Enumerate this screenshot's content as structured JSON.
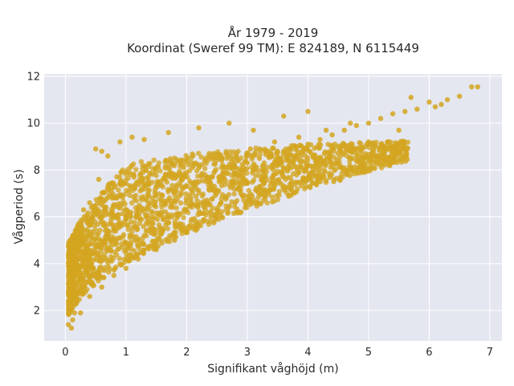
{
  "chart_data": {
    "type": "scatter",
    "title_line1": "År 1979 - 2019",
    "title_line2": "Koordinat (Sweref 99 TM): E 824189, N 6115449",
    "xlabel": "Signifikant våghöjd (m)",
    "ylabel": "Vågperiod (s)",
    "xlim": [
      -0.35,
      7.2
    ],
    "ylim": [
      0.7,
      12.1
    ],
    "xticks": [
      "0",
      "1",
      "2",
      "3",
      "4",
      "5",
      "6",
      "7"
    ],
    "yticks": [
      "2",
      "4",
      "6",
      "8",
      "10",
      "12"
    ],
    "grid": true,
    "marker_color": "#D4A520",
    "background_color": "#E5E7F0",
    "points": [
      [
        0.05,
        1.4
      ],
      [
        0.1,
        1.25
      ],
      [
        0.12,
        1.6
      ],
      [
        0.15,
        1.9
      ],
      [
        0.18,
        2.3
      ],
      [
        0.2,
        2.7
      ],
      [
        0.25,
        3.0
      ],
      [
        0.3,
        3.4
      ],
      [
        0.35,
        3.7
      ],
      [
        0.4,
        4.0
      ],
      [
        0.5,
        4.4
      ],
      [
        0.6,
        4.8
      ],
      [
        0.7,
        5.1
      ],
      [
        0.8,
        5.4
      ],
      [
        0.9,
        5.7
      ],
      [
        1.0,
        5.9
      ],
      [
        1.2,
        6.3
      ],
      [
        1.4,
        6.6
      ],
      [
        1.6,
        6.9
      ],
      [
        1.8,
        7.1
      ],
      [
        2.0,
        7.3
      ],
      [
        2.2,
        7.5
      ],
      [
        2.4,
        7.7
      ],
      [
        2.6,
        7.9
      ],
      [
        2.8,
        8.1
      ],
      [
        3.0,
        8.3
      ],
      [
        3.2,
        8.5
      ],
      [
        3.4,
        8.6
      ],
      [
        3.6,
        8.8
      ],
      [
        3.8,
        9.0
      ],
      [
        4.0,
        9.1
      ],
      [
        4.2,
        9.3
      ],
      [
        4.4,
        9.5
      ],
      [
        4.6,
        9.7
      ],
      [
        4.8,
        9.9
      ],
      [
        5.0,
        10.0
      ],
      [
        5.2,
        10.2
      ],
      [
        5.4,
        10.4
      ],
      [
        5.6,
        10.5
      ],
      [
        5.8,
        10.6
      ],
      [
        6.0,
        10.9
      ],
      [
        6.1,
        10.7
      ],
      [
        6.3,
        11.0
      ],
      [
        6.5,
        11.15
      ],
      [
        6.7,
        11.55
      ],
      [
        6.8,
        11.55
      ],
      [
        5.7,
        11.1
      ],
      [
        6.2,
        10.8
      ],
      [
        0.15,
        4.5
      ],
      [
        0.2,
        5.5
      ],
      [
        0.3,
        6.3
      ],
      [
        0.4,
        6.6
      ],
      [
        0.5,
        8.9
      ],
      [
        0.6,
        8.8
      ],
      [
        0.7,
        8.6
      ],
      [
        0.55,
        7.6
      ],
      [
        0.9,
        9.2
      ],
      [
        1.1,
        9.4
      ],
      [
        1.3,
        9.3
      ],
      [
        1.7,
        9.6
      ],
      [
        2.2,
        9.8
      ],
      [
        2.7,
        10.0
      ],
      [
        3.1,
        9.7
      ],
      [
        3.6,
        10.3
      ],
      [
        4.0,
        10.5
      ],
      [
        0.25,
        1.9
      ],
      [
        0.4,
        2.6
      ],
      [
        0.6,
        3.0
      ],
      [
        0.8,
        3.5
      ],
      [
        1.0,
        3.8
      ],
      [
        1.2,
        4.2
      ],
      [
        1.5,
        4.6
      ],
      [
        1.8,
        5.0
      ],
      [
        2.1,
        5.6
      ],
      [
        2.4,
        6.0
      ],
      [
        2.8,
        6.6
      ],
      [
        3.2,
        7.2
      ],
      [
        3.6,
        7.7
      ],
      [
        4.0,
        8.2
      ],
      [
        4.5,
        8.7
      ],
      [
        5.0,
        9.2
      ],
      [
        5.5,
        9.7
      ],
      [
        0.08,
        2.9
      ],
      [
        0.1,
        3.6
      ],
      [
        0.12,
        4.2
      ],
      [
        0.3,
        5.2
      ],
      [
        0.45,
        5.9
      ],
      [
        0.65,
        6.4
      ],
      [
        0.85,
        6.8
      ],
      [
        1.05,
        7.1
      ],
      [
        1.35,
        7.4
      ],
      [
        1.65,
        7.8
      ],
      [
        1.95,
        8.1
      ],
      [
        2.3,
        8.4
      ],
      [
        2.65,
        8.7
      ],
      [
        3.05,
        8.9
      ],
      [
        3.45,
        9.2
      ],
      [
        3.85,
        9.4
      ],
      [
        4.3,
        9.7
      ],
      [
        4.7,
        10.0
      ]
    ]
  }
}
